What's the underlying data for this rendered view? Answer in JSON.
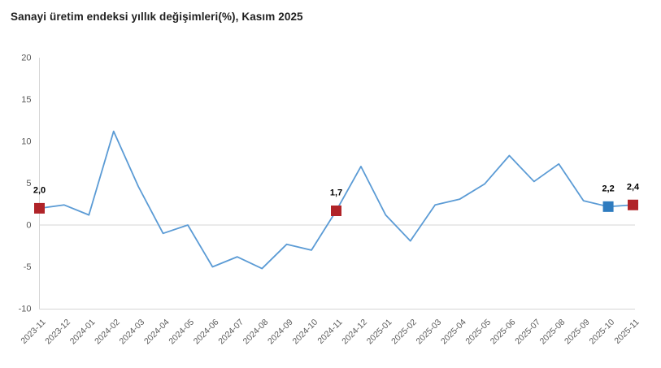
{
  "page": {
    "background": "#ffffff"
  },
  "header": {
    "title": "Sanayi üretim endeksi yıllık değişimleri(%), Kasım 2025"
  },
  "chart_data": {
    "type": "line",
    "title": "Sanayi üretim endeksi yıllık değişimleri(%), Kasım 2025",
    "x": [
      "2023-11",
      "2023-12",
      "2024-01",
      "2024-02",
      "2024-03",
      "2024-04",
      "2024-05",
      "2024-06",
      "2024-07",
      "2024-08",
      "2024-09",
      "2024-10",
      "2024-11",
      "2024-12",
      "2025-01",
      "2025-02",
      "2025-03",
      "2025-04",
      "2025-05",
      "2025-06",
      "2025-07",
      "2025-08",
      "2025-09",
      "2025-10",
      "2025-11"
    ],
    "values": [
      2.0,
      2.4,
      1.2,
      11.2,
      4.6,
      -1.0,
      0.0,
      -5.0,
      -3.8,
      -5.2,
      -2.3,
      -3.0,
      1.7,
      7.0,
      1.2,
      -1.9,
      2.4,
      3.1,
      4.9,
      8.3,
      5.2,
      7.3,
      2.9,
      2.2,
      2.4
    ],
    "xlabel": "",
    "ylabel": "",
    "ylim": [
      -10,
      20
    ],
    "yticks": [
      20,
      15,
      10,
      5,
      0,
      -5,
      -10
    ],
    "grid": "zero-line-only",
    "legend": "none",
    "line_color": "#5b9bd5",
    "axis_color": "#d6d6d6",
    "tick_label_color": "#595959",
    "data_label_color": "#000000",
    "highlights": [
      {
        "index": 0,
        "x": "2023-11",
        "label": "2,0",
        "marker_color": "#b02328"
      },
      {
        "index": 12,
        "x": "2024-11",
        "label": "1,7",
        "marker_color": "#b02328"
      },
      {
        "index": 23,
        "x": "2025-10",
        "label": "2,2",
        "marker_color": "#2e7bbf"
      },
      {
        "index": 24,
        "x": "2025-11",
        "label": "2,4",
        "marker_color": "#b02328"
      }
    ]
  }
}
